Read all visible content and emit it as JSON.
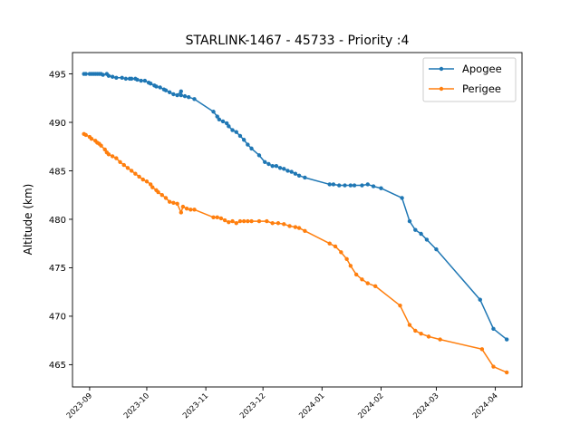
{
  "chart_data": {
    "type": "line",
    "title": "STARLINK-1467 - 45733 - Priority :4",
    "xlabel": "",
    "ylabel": "Altitude (km)",
    "x_ticks": [
      "2023-09",
      "2023-10",
      "2023-11",
      "2023-12",
      "2024-01",
      "2024-02",
      "2024-03",
      "2024-04"
    ],
    "y_ticks": [
      465,
      470,
      475,
      480,
      485,
      490,
      495
    ],
    "xlim": [
      "2023-08-23",
      "2024-04-15"
    ],
    "ylim": [
      462.7,
      497.2
    ],
    "grid": false,
    "legend_position": "top-right",
    "series": [
      {
        "name": "Apogee",
        "color": "#1f77b4",
        "points": [
          [
            "2023-08-29",
            495.0
          ],
          [
            "2023-08-30",
            495.0
          ],
          [
            "2023-09-01",
            495.0
          ],
          [
            "2023-09-02",
            495.0
          ],
          [
            "2023-09-03",
            495.0
          ],
          [
            "2023-09-04",
            495.0
          ],
          [
            "2023-09-05",
            495.0
          ],
          [
            "2023-09-06",
            495.0
          ],
          [
            "2023-09-07",
            495.0
          ],
          [
            "2023-09-08",
            494.9
          ],
          [
            "2023-09-10",
            495.0
          ],
          [
            "2023-09-11",
            494.8
          ],
          [
            "2023-09-13",
            494.7
          ],
          [
            "2023-09-15",
            494.6
          ],
          [
            "2023-09-18",
            494.6
          ],
          [
            "2023-09-20",
            494.5
          ],
          [
            "2023-09-22",
            494.5
          ],
          [
            "2023-09-23",
            494.5
          ],
          [
            "2023-09-25",
            494.5
          ],
          [
            "2023-09-26",
            494.4
          ],
          [
            "2023-09-28",
            494.3
          ],
          [
            "2023-09-30",
            494.3
          ],
          [
            "2023-10-02",
            494.1
          ],
          [
            "2023-10-03",
            494.0
          ],
          [
            "2023-10-05",
            493.8
          ],
          [
            "2023-10-06",
            493.7
          ],
          [
            "2023-10-08",
            493.6
          ],
          [
            "2023-10-10",
            493.4
          ],
          [
            "2023-10-11",
            493.3
          ],
          [
            "2023-10-13",
            493.1
          ],
          [
            "2023-10-15",
            492.9
          ],
          [
            "2023-10-17",
            492.8
          ],
          [
            "2023-10-19",
            493.2
          ],
          [
            "2023-10-19",
            492.8
          ],
          [
            "2023-10-21",
            492.7
          ],
          [
            "2023-10-23",
            492.6
          ],
          [
            "2023-10-26",
            492.4
          ],
          [
            "2023-11-05",
            491.1
          ],
          [
            "2023-11-07",
            490.6
          ],
          [
            "2023-11-08",
            490.3
          ],
          [
            "2023-11-10",
            490.1
          ],
          [
            "2023-11-12",
            489.9
          ],
          [
            "2023-11-13",
            489.6
          ],
          [
            "2023-11-15",
            489.2
          ],
          [
            "2023-11-17",
            489.0
          ],
          [
            "2023-11-19",
            488.6
          ],
          [
            "2023-11-21",
            488.2
          ],
          [
            "2023-11-23",
            487.7
          ],
          [
            "2023-11-25",
            487.3
          ],
          [
            "2023-11-29",
            486.6
          ],
          [
            "2023-12-02",
            485.9
          ],
          [
            "2023-12-04",
            485.7
          ],
          [
            "2023-12-06",
            485.5
          ],
          [
            "2023-12-08",
            485.5
          ],
          [
            "2023-12-10",
            485.3
          ],
          [
            "2023-12-12",
            485.2
          ],
          [
            "2023-12-14",
            485.0
          ],
          [
            "2023-12-16",
            484.9
          ],
          [
            "2023-12-18",
            484.7
          ],
          [
            "2023-12-20",
            484.5
          ],
          [
            "2023-12-23",
            484.3
          ],
          [
            "2024-01-05",
            483.6
          ],
          [
            "2024-01-07",
            483.6
          ],
          [
            "2024-01-10",
            483.5
          ],
          [
            "2024-01-13",
            483.5
          ],
          [
            "2024-01-16",
            483.5
          ],
          [
            "2024-01-18",
            483.5
          ],
          [
            "2024-01-22",
            483.5
          ],
          [
            "2024-01-25",
            483.6
          ],
          [
            "2024-01-28",
            483.4
          ],
          [
            "2024-02-01",
            483.2
          ],
          [
            "2024-02-12",
            482.2
          ],
          [
            "2024-02-16",
            479.8
          ],
          [
            "2024-02-19",
            478.9
          ],
          [
            "2024-02-22",
            478.5
          ],
          [
            "2024-02-25",
            477.9
          ],
          [
            "2024-03-01",
            476.9
          ],
          [
            "2024-03-24",
            471.7
          ],
          [
            "2024-03-31",
            468.7
          ],
          [
            "2024-04-07",
            467.6
          ]
        ]
      },
      {
        "name": "Perigee",
        "color": "#ff7f0e",
        "points": [
          [
            "2023-08-29",
            488.8
          ],
          [
            "2023-08-30",
            488.7
          ],
          [
            "2023-09-01",
            488.5
          ],
          [
            "2023-09-02",
            488.3
          ],
          [
            "2023-09-04",
            488.1
          ],
          [
            "2023-09-05",
            487.9
          ],
          [
            "2023-09-06",
            487.8
          ],
          [
            "2023-09-07",
            487.6
          ],
          [
            "2023-09-09",
            487.2
          ],
          [
            "2023-09-10",
            486.9
          ],
          [
            "2023-09-11",
            486.7
          ],
          [
            "2023-09-13",
            486.5
          ],
          [
            "2023-09-15",
            486.3
          ],
          [
            "2023-09-17",
            485.9
          ],
          [
            "2023-09-19",
            485.6
          ],
          [
            "2023-09-21",
            485.3
          ],
          [
            "2023-09-23",
            485.0
          ],
          [
            "2023-09-25",
            484.7
          ],
          [
            "2023-09-27",
            484.4
          ],
          [
            "2023-09-29",
            484.1
          ],
          [
            "2023-10-01",
            483.9
          ],
          [
            "2023-10-03",
            483.6
          ],
          [
            "2023-10-04",
            483.3
          ],
          [
            "2023-10-06",
            483.0
          ],
          [
            "2023-10-07",
            482.8
          ],
          [
            "2023-10-09",
            482.5
          ],
          [
            "2023-10-11",
            482.2
          ],
          [
            "2023-10-13",
            481.8
          ],
          [
            "2023-10-15",
            481.7
          ],
          [
            "2023-10-17",
            481.6
          ],
          [
            "2023-10-19",
            480.7
          ],
          [
            "2023-10-20",
            481.3
          ],
          [
            "2023-10-22",
            481.1
          ],
          [
            "2023-10-24",
            481.0
          ],
          [
            "2023-10-26",
            481.0
          ],
          [
            "2023-11-05",
            480.2
          ],
          [
            "2023-11-07",
            480.2
          ],
          [
            "2023-11-09",
            480.1
          ],
          [
            "2023-11-11",
            479.9
          ],
          [
            "2023-11-13",
            479.7
          ],
          [
            "2023-11-15",
            479.8
          ],
          [
            "2023-11-17",
            479.6
          ],
          [
            "2023-11-19",
            479.8
          ],
          [
            "2023-11-21",
            479.8
          ],
          [
            "2023-11-23",
            479.8
          ],
          [
            "2023-11-25",
            479.8
          ],
          [
            "2023-11-29",
            479.8
          ],
          [
            "2023-12-03",
            479.8
          ],
          [
            "2023-12-06",
            479.6
          ],
          [
            "2023-12-09",
            479.6
          ],
          [
            "2023-12-12",
            479.5
          ],
          [
            "2023-12-15",
            479.3
          ],
          [
            "2023-12-18",
            479.2
          ],
          [
            "2023-12-20",
            479.1
          ],
          [
            "2023-12-23",
            478.8
          ],
          [
            "2024-01-05",
            477.5
          ],
          [
            "2024-01-08",
            477.2
          ],
          [
            "2024-01-11",
            476.6
          ],
          [
            "2024-01-14",
            475.9
          ],
          [
            "2024-01-16",
            475.2
          ],
          [
            "2024-01-19",
            474.3
          ],
          [
            "2024-01-22",
            473.8
          ],
          [
            "2024-01-25",
            473.4
          ],
          [
            "2024-01-29",
            473.1
          ],
          [
            "2024-02-11",
            471.1
          ],
          [
            "2024-02-16",
            469.1
          ],
          [
            "2024-02-19",
            468.5
          ],
          [
            "2024-02-22",
            468.2
          ],
          [
            "2024-02-26",
            467.9
          ],
          [
            "2024-03-03",
            467.6
          ],
          [
            "2024-03-25",
            466.6
          ],
          [
            "2024-03-31",
            464.8
          ],
          [
            "2024-04-07",
            464.2
          ]
        ]
      }
    ]
  }
}
